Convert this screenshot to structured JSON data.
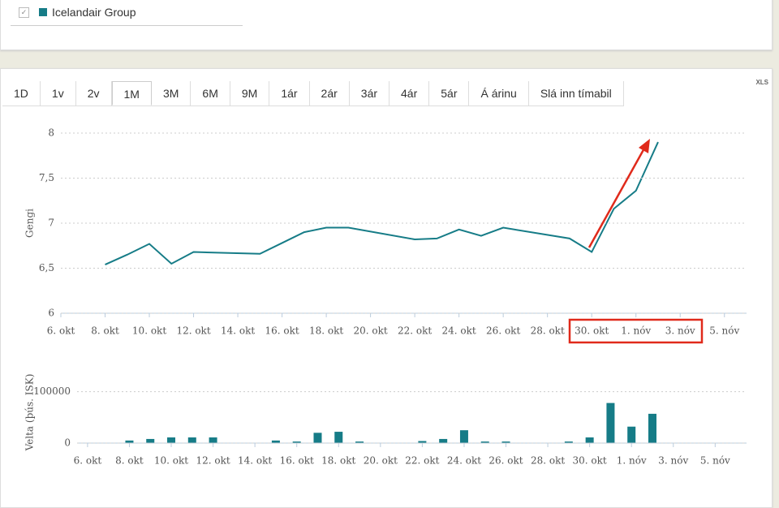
{
  "legend": {
    "color": "#167c87"
  },
  "tabs": [
    {
      "label": "1D"
    },
    {
      "label": "1v"
    },
    {
      "label": "2v"
    },
    {
      "label": "1M",
      "selected": true
    },
    {
      "label": "3M"
    },
    {
      "label": "6M"
    },
    {
      "label": "9M"
    },
    {
      "label": "1ár"
    },
    {
      "label": "2ár"
    },
    {
      "label": "3ár"
    },
    {
      "label": "4ár"
    },
    {
      "label": "5ár"
    },
    {
      "label": "Á árinu"
    },
    {
      "label": "Slá inn tímabil"
    }
  ],
  "export_label": "XLS",
  "chart_data": [
    {
      "type": "line",
      "ylabel": "Gengi",
      "x": [
        2,
        3,
        4,
        5,
        6,
        9,
        10,
        11,
        12,
        13,
        16,
        17,
        18,
        19,
        20,
        23,
        24,
        25,
        26,
        27
      ],
      "series": [
        {
          "name": "Icelandair Group",
          "color": "#167c87",
          "values": [
            6.54,
            6.65,
            6.77,
            6.55,
            6.68,
            6.66,
            6.78,
            6.9,
            6.95,
            6.95,
            6.82,
            6.83,
            6.93,
            6.86,
            6.95,
            6.83,
            6.68,
            7.16,
            7.36,
            7.9
          ]
        }
      ],
      "xlim": [
        0,
        31
      ],
      "xticks": [
        {
          "value": 0,
          "label": "6. okt"
        },
        {
          "value": 2,
          "label": "8. okt"
        },
        {
          "value": 4,
          "label": "10. okt"
        },
        {
          "value": 6,
          "label": "12. okt"
        },
        {
          "value": 8,
          "label": "14. okt"
        },
        {
          "value": 10,
          "label": "16. okt"
        },
        {
          "value": 12,
          "label": "18. okt"
        },
        {
          "value": 14,
          "label": "20. okt"
        },
        {
          "value": 16,
          "label": "22. okt"
        },
        {
          "value": 18,
          "label": "24. okt"
        },
        {
          "value": 20,
          "label": "26. okt"
        },
        {
          "value": 22,
          "label": "28. okt"
        },
        {
          "value": 24,
          "label": "30. okt"
        },
        {
          "value": 26,
          "label": "1. nóv"
        },
        {
          "value": 28,
          "label": "3. nóv"
        },
        {
          "value": 30,
          "label": "5. nóv"
        }
      ],
      "ylim": [
        6,
        8
      ],
      "yticks": [
        6,
        {
          "value": 6.5,
          "label": "6,5"
        },
        7,
        {
          "value": 7.5,
          "label": "7,5"
        },
        8
      ],
      "grid": true
    },
    {
      "type": "bar",
      "ylabel": "Velta (þús. ISK)",
      "color": "#167c87",
      "x": [
        2,
        3,
        4,
        5,
        6,
        9,
        10,
        11,
        12,
        13,
        16,
        17,
        18,
        19,
        20,
        23,
        24,
        25,
        26,
        27
      ],
      "values": [
        5000,
        8000,
        11000,
        11000,
        11000,
        5000,
        3000,
        20000,
        22000,
        3000,
        4000,
        8000,
        25000,
        3000,
        3000,
        3000,
        11000,
        78000,
        32000,
        57000
      ],
      "xlim": [
        -0.5,
        31.5
      ],
      "xticks": [
        {
          "value": 0,
          "label": "6. okt"
        },
        {
          "value": 2,
          "label": "8. okt"
        },
        {
          "value": 4,
          "label": "10. okt"
        },
        {
          "value": 6,
          "label": "12. okt"
        },
        {
          "value": 8,
          "label": "14. okt"
        },
        {
          "value": 10,
          "label": "16. okt"
        },
        {
          "value": 12,
          "label": "18. okt"
        },
        {
          "value": 14,
          "label": "20. okt"
        },
        {
          "value": 16,
          "label": "22. okt"
        },
        {
          "value": 18,
          "label": "24. okt"
        },
        {
          "value": 20,
          "label": "26. okt"
        },
        {
          "value": 22,
          "label": "28. okt"
        },
        {
          "value": 24,
          "label": "30. okt"
        },
        {
          "value": 26,
          "label": "1. nóv"
        },
        {
          "value": 28,
          "label": "3. nóv"
        },
        {
          "value": 30,
          "label": "5. nóv"
        }
      ],
      "ylim": [
        0,
        120000
      ],
      "yticks": [
        0,
        100000
      ],
      "grid": true
    }
  ]
}
